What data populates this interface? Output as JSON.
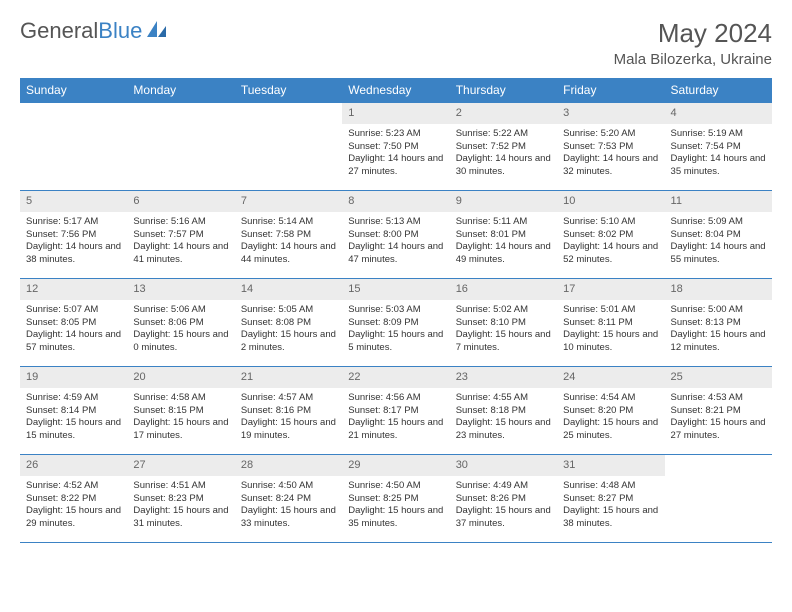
{
  "brand": {
    "part1": "General",
    "part2": "Blue"
  },
  "title": "May 2024",
  "location": "Mala Bilozerka, Ukraine",
  "colors": {
    "header_bg": "#3b82c4",
    "header_text": "#ffffff",
    "daynum_bg": "#ececec",
    "daynum_text": "#666666",
    "body_text": "#333333",
    "rule": "#3b82c4"
  },
  "weekdays": [
    "Sunday",
    "Monday",
    "Tuesday",
    "Wednesday",
    "Thursday",
    "Friday",
    "Saturday"
  ],
  "weeks": [
    [
      null,
      null,
      null,
      {
        "n": "1",
        "sr": "5:23 AM",
        "ss": "7:50 PM",
        "dl": "14 hours and 27 minutes."
      },
      {
        "n": "2",
        "sr": "5:22 AM",
        "ss": "7:52 PM",
        "dl": "14 hours and 30 minutes."
      },
      {
        "n": "3",
        "sr": "5:20 AM",
        "ss": "7:53 PM",
        "dl": "14 hours and 32 minutes."
      },
      {
        "n": "4",
        "sr": "5:19 AM",
        "ss": "7:54 PM",
        "dl": "14 hours and 35 minutes."
      }
    ],
    [
      {
        "n": "5",
        "sr": "5:17 AM",
        "ss": "7:56 PM",
        "dl": "14 hours and 38 minutes."
      },
      {
        "n": "6",
        "sr": "5:16 AM",
        "ss": "7:57 PM",
        "dl": "14 hours and 41 minutes."
      },
      {
        "n": "7",
        "sr": "5:14 AM",
        "ss": "7:58 PM",
        "dl": "14 hours and 44 minutes."
      },
      {
        "n": "8",
        "sr": "5:13 AM",
        "ss": "8:00 PM",
        "dl": "14 hours and 47 minutes."
      },
      {
        "n": "9",
        "sr": "5:11 AM",
        "ss": "8:01 PM",
        "dl": "14 hours and 49 minutes."
      },
      {
        "n": "10",
        "sr": "5:10 AM",
        "ss": "8:02 PM",
        "dl": "14 hours and 52 minutes."
      },
      {
        "n": "11",
        "sr": "5:09 AM",
        "ss": "8:04 PM",
        "dl": "14 hours and 55 minutes."
      }
    ],
    [
      {
        "n": "12",
        "sr": "5:07 AM",
        "ss": "8:05 PM",
        "dl": "14 hours and 57 minutes."
      },
      {
        "n": "13",
        "sr": "5:06 AM",
        "ss": "8:06 PM",
        "dl": "15 hours and 0 minutes."
      },
      {
        "n": "14",
        "sr": "5:05 AM",
        "ss": "8:08 PM",
        "dl": "15 hours and 2 minutes."
      },
      {
        "n": "15",
        "sr": "5:03 AM",
        "ss": "8:09 PM",
        "dl": "15 hours and 5 minutes."
      },
      {
        "n": "16",
        "sr": "5:02 AM",
        "ss": "8:10 PM",
        "dl": "15 hours and 7 minutes."
      },
      {
        "n": "17",
        "sr": "5:01 AM",
        "ss": "8:11 PM",
        "dl": "15 hours and 10 minutes."
      },
      {
        "n": "18",
        "sr": "5:00 AM",
        "ss": "8:13 PM",
        "dl": "15 hours and 12 minutes."
      }
    ],
    [
      {
        "n": "19",
        "sr": "4:59 AM",
        "ss": "8:14 PM",
        "dl": "15 hours and 15 minutes."
      },
      {
        "n": "20",
        "sr": "4:58 AM",
        "ss": "8:15 PM",
        "dl": "15 hours and 17 minutes."
      },
      {
        "n": "21",
        "sr": "4:57 AM",
        "ss": "8:16 PM",
        "dl": "15 hours and 19 minutes."
      },
      {
        "n": "22",
        "sr": "4:56 AM",
        "ss": "8:17 PM",
        "dl": "15 hours and 21 minutes."
      },
      {
        "n": "23",
        "sr": "4:55 AM",
        "ss": "8:18 PM",
        "dl": "15 hours and 23 minutes."
      },
      {
        "n": "24",
        "sr": "4:54 AM",
        "ss": "8:20 PM",
        "dl": "15 hours and 25 minutes."
      },
      {
        "n": "25",
        "sr": "4:53 AM",
        "ss": "8:21 PM",
        "dl": "15 hours and 27 minutes."
      }
    ],
    [
      {
        "n": "26",
        "sr": "4:52 AM",
        "ss": "8:22 PM",
        "dl": "15 hours and 29 minutes."
      },
      {
        "n": "27",
        "sr": "4:51 AM",
        "ss": "8:23 PM",
        "dl": "15 hours and 31 minutes."
      },
      {
        "n": "28",
        "sr": "4:50 AM",
        "ss": "8:24 PM",
        "dl": "15 hours and 33 minutes."
      },
      {
        "n": "29",
        "sr": "4:50 AM",
        "ss": "8:25 PM",
        "dl": "15 hours and 35 minutes."
      },
      {
        "n": "30",
        "sr": "4:49 AM",
        "ss": "8:26 PM",
        "dl": "15 hours and 37 minutes."
      },
      {
        "n": "31",
        "sr": "4:48 AM",
        "ss": "8:27 PM",
        "dl": "15 hours and 38 minutes."
      },
      null
    ]
  ],
  "labels": {
    "sunrise": "Sunrise:",
    "sunset": "Sunset:",
    "daylight": "Daylight:"
  }
}
